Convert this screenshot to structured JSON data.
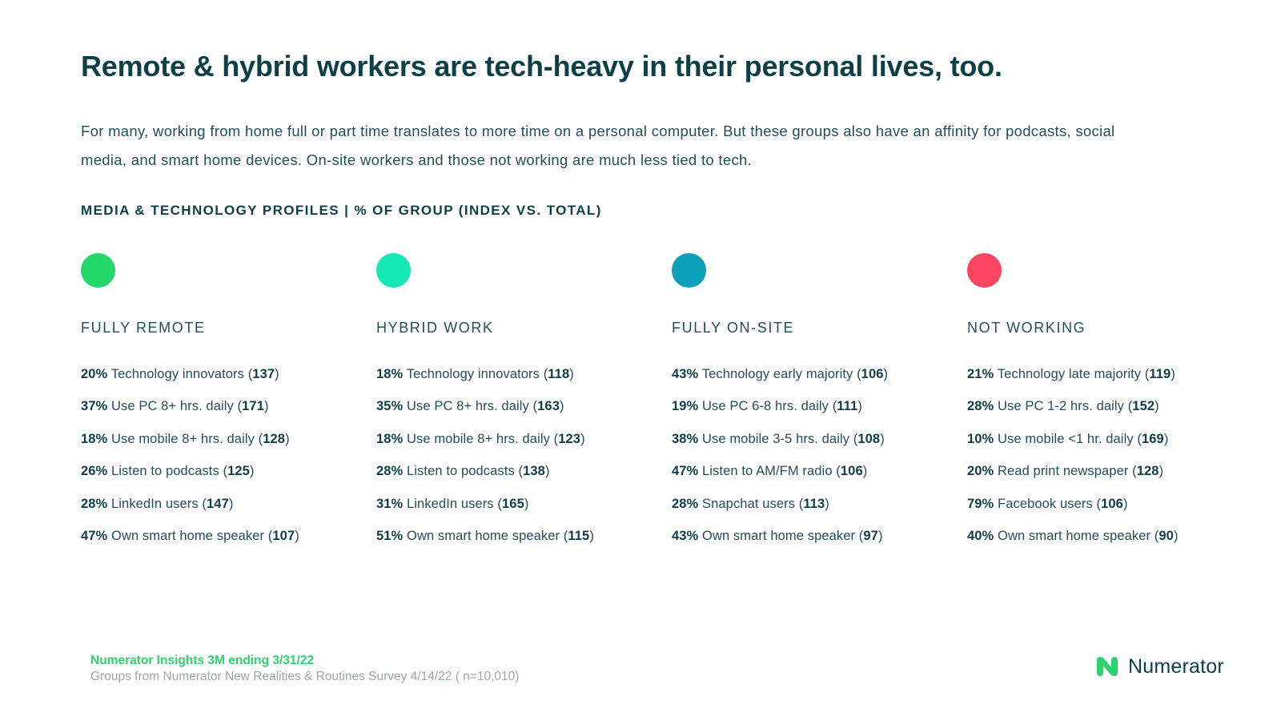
{
  "title": "Remote & hybrid workers are tech-heavy in their personal lives, too.",
  "intro": "For many, working from home full or part time translates to more time on a personal computer. But these groups also have an affinity for podcasts, social media, and smart home devices. On-site workers and those not working are much less tied to tech.",
  "section_label": "MEDIA & TECHNOLOGY PROFILES | % OF GROUP (INDEX VS. TOTAL)",
  "groups": [
    {
      "name": "FULLY REMOTE",
      "color": "#22d86a",
      "stats": [
        {
          "pct": "20%",
          "label": "Technology innovators",
          "index": "137"
        },
        {
          "pct": "37%",
          "label": "Use PC 8+ hrs. daily",
          "index": "171"
        },
        {
          "pct": "18%",
          "label": "Use mobile 8+ hrs. daily",
          "index": "128"
        },
        {
          "pct": "26%",
          "label": "Listen to podcasts",
          "index": "125"
        },
        {
          "pct": "28%",
          "label": "LinkedIn users",
          "index": "147"
        },
        {
          "pct": "47%",
          "label": "Own smart home speaker",
          "index": "107"
        }
      ]
    },
    {
      "name": "HYBRID WORK",
      "color": "#14e8b4",
      "stats": [
        {
          "pct": "18%",
          "label": "Technology innovators",
          "index": "118"
        },
        {
          "pct": "35%",
          "label": "Use PC 8+ hrs. daily",
          "index": "163"
        },
        {
          "pct": "18%",
          "label": "Use mobile 8+ hrs. daily",
          "index": "123"
        },
        {
          "pct": "28%",
          "label": "Listen to podcasts",
          "index": "138"
        },
        {
          "pct": "31%",
          "label": "LinkedIn users",
          "index": "165"
        },
        {
          "pct": "51%",
          "label": "Own smart home speaker",
          "index": "115"
        }
      ]
    },
    {
      "name": "FULLY ON-SITE",
      "color": "#0aa0b8",
      "stats": [
        {
          "pct": "43%",
          "label": "Technology early majority",
          "index": "106"
        },
        {
          "pct": "19%",
          "label": "Use PC 6-8 hrs. daily",
          "index": "111"
        },
        {
          "pct": "38%",
          "label": "Use mobile 3-5 hrs. daily",
          "index": "108"
        },
        {
          "pct": "47%",
          "label": "Listen to AM/FM radio",
          "index": "106"
        },
        {
          "pct": "28%",
          "label": "Snapchat users",
          "index": "113"
        },
        {
          "pct": "43%",
          "label": "Own smart home speaker",
          "index": "97"
        }
      ]
    },
    {
      "name": "NOT WORKING",
      "color": "#fb4661",
      "stats": [
        {
          "pct": "21%",
          "label": "Technology late majority",
          "index": "119"
        },
        {
          "pct": "28%",
          "label": "Use PC 1-2 hrs. daily",
          "index": "152"
        },
        {
          "pct": "10%",
          "label": "Use mobile <1 hr. daily",
          "index": "169"
        },
        {
          "pct": "20%",
          "label": "Read print newspaper",
          "index": "128"
        },
        {
          "pct": "79%",
          "label": "Facebook users",
          "index": "106"
        },
        {
          "pct": "40%",
          "label": "Own smart home speaker",
          "index": "90"
        }
      ]
    }
  ],
  "footer": {
    "source_line": "Numerator Insights 3M ending 3/31/22",
    "note_line": "Groups from Numerator New Realities & Routines Survey 4/14/22 ( n=10,010)"
  },
  "brand": {
    "name": "Numerator",
    "icon": "numerator-logo-icon",
    "color": "#2ad36f"
  }
}
